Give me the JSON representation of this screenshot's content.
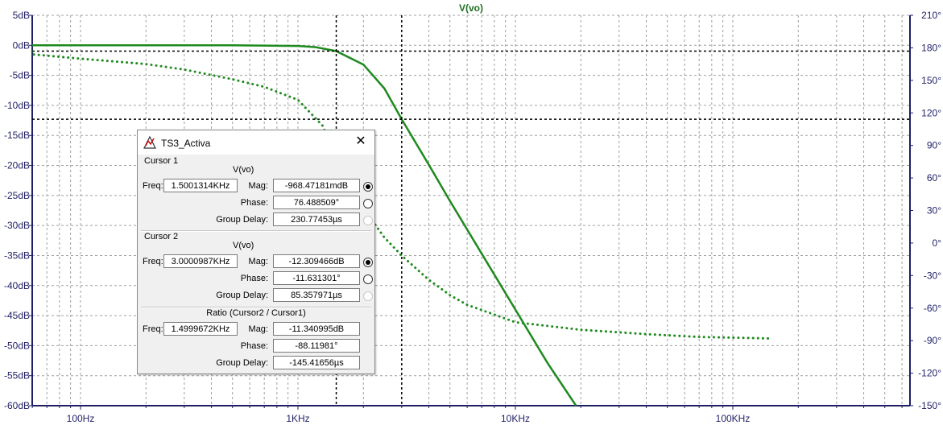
{
  "plot": {
    "trace_label": "V(vo)",
    "left_axis_ticks": [
      "5dB",
      "0dB",
      "-5dB",
      "-10dB",
      "-15dB",
      "-20dB",
      "-25dB",
      "-30dB",
      "-35dB",
      "-40dB",
      "-45dB",
      "-50dB",
      "-55dB",
      "-60dB"
    ],
    "right_axis_ticks": [
      "210°",
      "180°",
      "150°",
      "120°",
      "90°",
      "60°",
      "30°",
      "0°",
      "-30°",
      "-60°",
      "-90°",
      "-120°",
      "-150°"
    ],
    "x_axis_ticks": [
      "100Hz",
      "1KHz",
      "10KHz",
      "100KHz"
    ],
    "colors": {
      "trace": "#1f8a1f",
      "axis": "#1f1f66",
      "grid": "#a0a0a0",
      "cursor": "#000000"
    }
  },
  "chart_data": {
    "type": "line",
    "title": "V(vo)",
    "x_scale": "log",
    "x_range_hz": [
      20,
      150000
    ],
    "left_axis": {
      "label": "",
      "range": [
        -60,
        5
      ],
      "unit": "dB"
    },
    "right_axis": {
      "label": "",
      "range": [
        -150,
        210
      ],
      "unit": "°"
    },
    "cursors": [
      {
        "freq_hz": 1500.1314,
        "mag_db": -0.968,
        "phase_deg": 76.49
      },
      {
        "freq_hz": 3000.0987,
        "mag_db": -12.31,
        "phase_deg": -11.63
      }
    ],
    "series": [
      {
        "style": "solid",
        "axis": "left",
        "x": [
          20,
          100,
          500,
          1000,
          1200,
          1500,
          2000,
          2500,
          3000,
          4000,
          5000,
          7000,
          10000,
          14000,
          19000
        ],
        "y": [
          0,
          0,
          0,
          -0.1,
          -0.3,
          -0.97,
          -3.2,
          -7.2,
          -12.3,
          -19.9,
          -25.9,
          -34.7,
          -44.0,
          -52.8,
          -60.0
        ]
      },
      {
        "style": "dotted",
        "axis": "right",
        "x": [
          20,
          50,
          100,
          200,
          300,
          500,
          700,
          1000,
          1300,
          1500,
          1700,
          2000,
          2500,
          3000,
          4000,
          5000,
          6000,
          8000,
          10000,
          20000,
          40000,
          70000,
          150000
        ],
        "y": [
          177,
          174,
          170,
          165,
          160,
          151,
          144,
          132,
          108,
          76.5,
          55,
          32,
          5,
          -11.6,
          -34,
          -48,
          -57,
          -66,
          -73,
          -80,
          -84,
          -86.6,
          -88
        ]
      }
    ]
  },
  "dialog": {
    "title": "TS3_Activa",
    "cursor1": {
      "group_label": "Cursor 1",
      "trace": "V(vo)",
      "freq_label": "Freq:",
      "freq": "1.5001314KHz",
      "mag_label": "Mag:",
      "mag": "-968.47181mdB",
      "phase_label": "Phase:",
      "phase": "76.488509°",
      "gd_label": "Group Delay:",
      "gd": "230.77453µs"
    },
    "cursor2": {
      "group_label": "Cursor 2",
      "trace": "V(vo)",
      "freq_label": "Freq:",
      "freq": "3.0000987KHz",
      "mag_label": "Mag:",
      "mag": "-12.309466dB",
      "phase_label": "Phase:",
      "phase": "-11.631301°",
      "gd_label": "Group Delay:",
      "gd": "85.357971µs"
    },
    "ratio": {
      "group_label": "Ratio (Cursor2 / Cursor1)",
      "freq_label": "Freq:",
      "freq": "1.4999672KHz",
      "mag_label": "Mag:",
      "mag": "-11.340995dB",
      "phase_label": "Phase:",
      "phase": "-88.11981°",
      "gd_label": "Group Delay:",
      "gd": "-145.41656µs"
    }
  }
}
